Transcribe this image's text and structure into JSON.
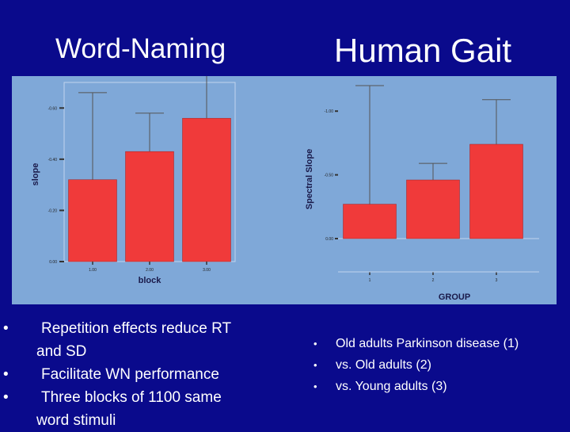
{
  "slide": {
    "left_title": "Word-Naming",
    "right_title": "Human Gait",
    "left_bullets": [
      "Repetition effects reduce RT and SD",
      "Facilitate WN performance",
      "Three blocks of 1100 same word stimuli"
    ],
    "right_bullets": [
      "Old adults Parkinson disease (1)",
      "vs. Old adults (2)",
      "vs. Young adults (3)"
    ],
    "bullet_glyph": "•"
  },
  "colors": {
    "background": "#0a0a8c",
    "panel": "#7fa8d8",
    "bar": "#f03a3a",
    "text": "#ffffff"
  },
  "chart_data": [
    {
      "type": "bar",
      "categories": [
        "1.00",
        "2.00",
        "3.00"
      ],
      "values": [
        0.32,
        0.43,
        0.56
      ],
      "error_upper": [
        0.66,
        0.58,
        0.76
      ],
      "xlabel": "block",
      "ylabel": "slope",
      "ylim": [
        0,
        0.7
      ],
      "yticks": [
        0.0,
        0.2,
        0.4,
        0.6
      ],
      "ytick_labels": [
        "0.00",
        "-0.20",
        "-0.40",
        "-0.60"
      ],
      "grid": false
    },
    {
      "type": "bar",
      "categories": [
        "1",
        "2",
        "3"
      ],
      "values": [
        0.27,
        0.46,
        0.74
      ],
      "error_upper": [
        1.2,
        0.59,
        1.09
      ],
      "xlabel": "GROUP",
      "ylabel": "Spectral Slope",
      "ylim": [
        0,
        1.25
      ],
      "yticks": [
        0.0,
        0.5,
        1.0
      ],
      "ytick_labels": [
        "0.00",
        "-0.50",
        "-1.00"
      ],
      "grid": false
    }
  ]
}
